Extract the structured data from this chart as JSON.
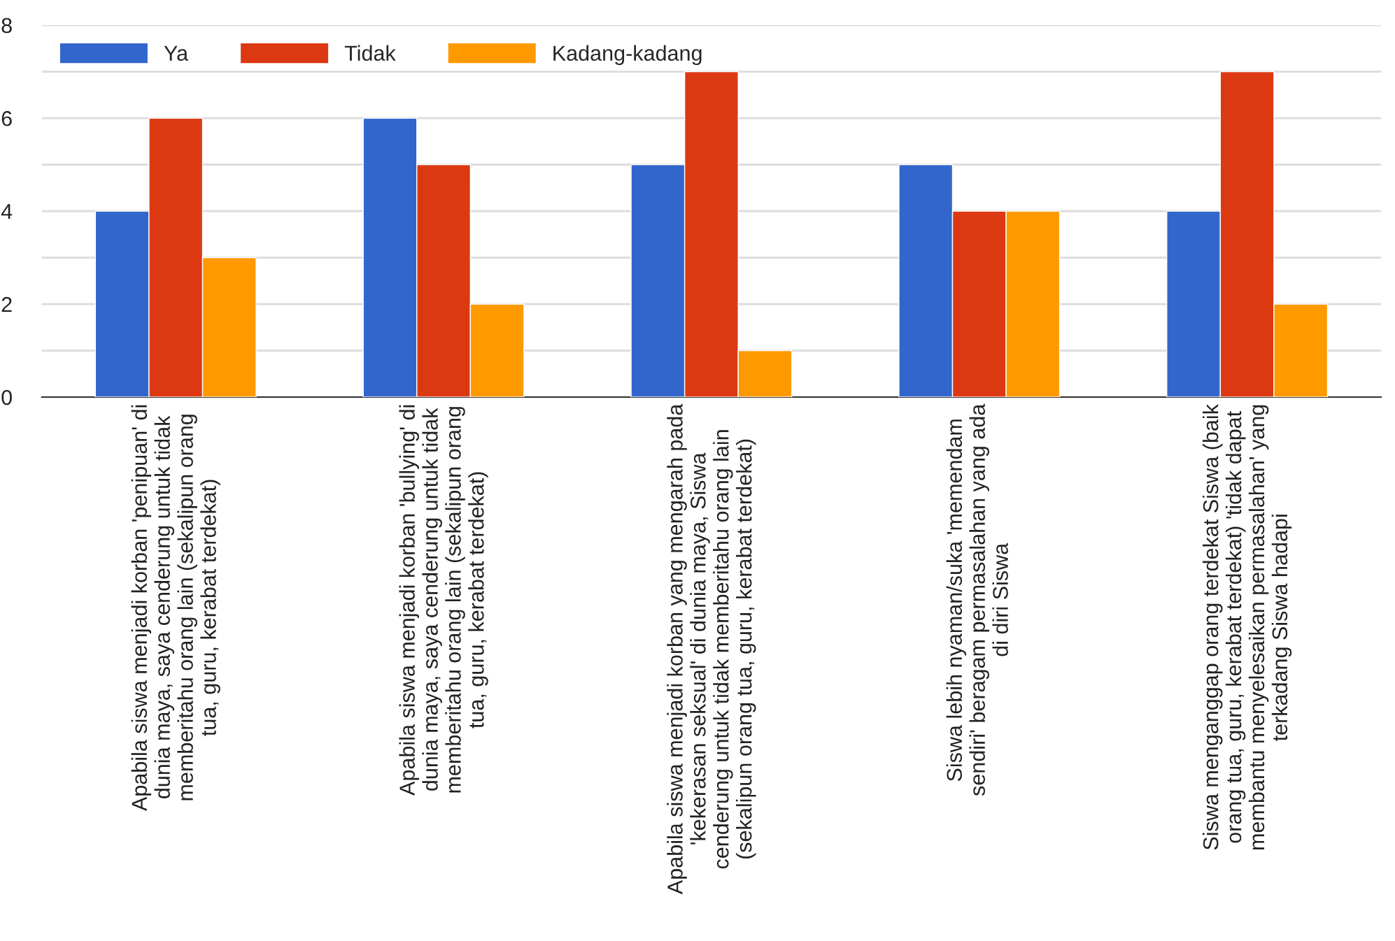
{
  "chart_data": {
    "type": "bar",
    "categories": [
      "Apabila siswa menjadi korban 'penipuan' di\ndunia maya, saya cenderung untuk tidak\nmemberitahu orang lain (sekalipun orang\ntua, guru, kerabat terdekat)",
      "Apabila siswa menjadi korban 'bullying' di\ndunia maya, saya cenderung untuk tidak\nmemberitahu orang lain (sekalipun orang\ntua, guru, kerabat terdekat)",
      "Apabila siswa menjadi korban yang mengarah pada\n'kekerasan seksual' di dunia maya, Siswa\ncenderung untuk tidak memberitahu orang lain\n(sekalipun orang tua, guru, kerabat terdekat)",
      "Siswa lebih nyaman/suka 'memendam\nsendiri' beragam permasalahan yang ada\ndi diri Siswa",
      "Siswa menganggap orang terdekat Siswa (baik\norang tua, guru, kerabat terdekat) 'tidak dapat\nmembantu menyelesaikan permasalahan' yang\nterkadang Siswa hadapi"
    ],
    "series": [
      {
        "name": "Ya",
        "color": "#3366cc",
        "values": [
          4,
          6,
          5,
          5,
          4
        ]
      },
      {
        "name": "Tidak",
        "color": "#dc3912",
        "values": [
          6,
          5,
          7,
          4,
          7
        ]
      },
      {
        "name": "Kadang-kadang",
        "color": "#ff9900",
        "values": [
          3,
          2,
          1,
          4,
          2
        ]
      }
    ],
    "ylim": [
      0,
      8
    ],
    "yticks": [
      0,
      {
        "value": 1,
        "label": null
      },
      2,
      {
        "value": 3,
        "label": null
      },
      4,
      {
        "value": 5,
        "label": null
      },
      6,
      {
        "value": 7,
        "label": null
      },
      8
    ],
    "grid": "y",
    "legend": "top left"
  }
}
